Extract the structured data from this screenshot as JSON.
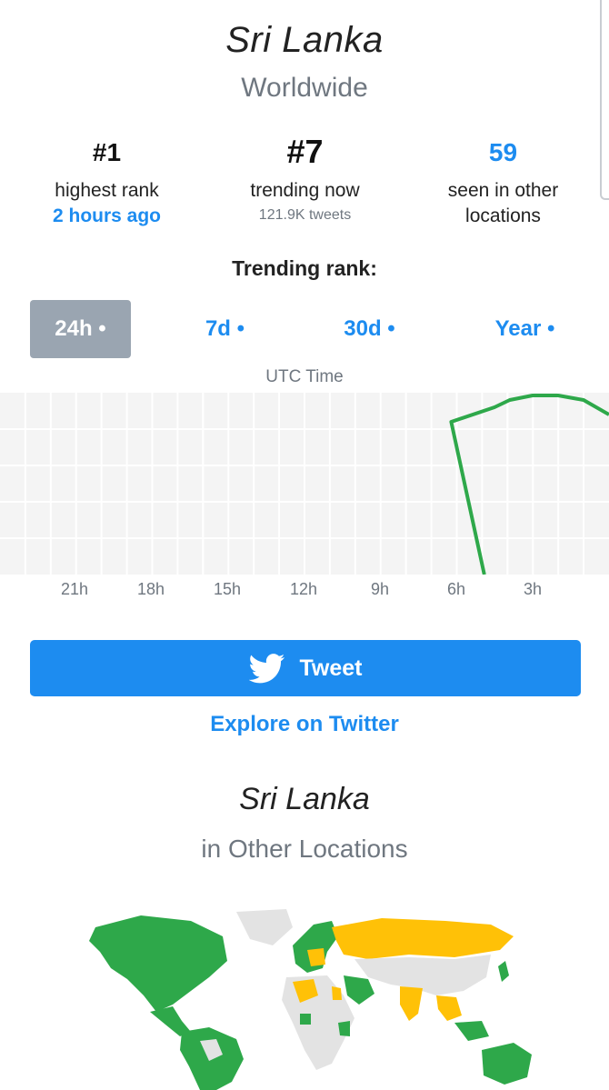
{
  "header": {
    "title": "Sri Lanka",
    "subtitle": "Worldwide"
  },
  "stats": [
    {
      "value": "#1",
      "label": "highest rank",
      "sub": "2 hours ago"
    },
    {
      "value": "#7",
      "label": "trending now",
      "small": "121.9K tweets"
    },
    {
      "value": "59",
      "label_line1": "seen in other",
      "label_line2": "locations"
    }
  ],
  "rank_section": {
    "title": "Trending rank:"
  },
  "ranges": [
    "24h •",
    "7d •",
    "30d •",
    "Year •"
  ],
  "chart_data": {
    "type": "line",
    "xlabel": "UTC Time",
    "x_tick_labels": [
      "21h",
      "18h",
      "15h",
      "12h",
      "9h",
      "6h",
      "3h"
    ],
    "series": [
      {
        "color": "#2ea84a",
        "x_hours_ago": [
          4.9,
          6.2,
          4.5,
          3.9,
          3.0,
          2.0,
          1.0,
          0.0
        ],
        "relative_height": [
          0.0,
          0.84,
          0.92,
          0.96,
          0.985,
          0.985,
          0.96,
          0.88
        ]
      }
    ],
    "x_range_hours_ago": [
      24,
      0
    ],
    "grid": true
  },
  "actions": {
    "tweet_label": "Tweet",
    "explore_label": "Explore on Twitter"
  },
  "locations_section": {
    "title": "Sri Lanka",
    "subtitle": "in Other Locations"
  },
  "map_colors": {
    "trending": "#2ea84a",
    "other": "#ffc107",
    "none": "#e3e3e3"
  }
}
